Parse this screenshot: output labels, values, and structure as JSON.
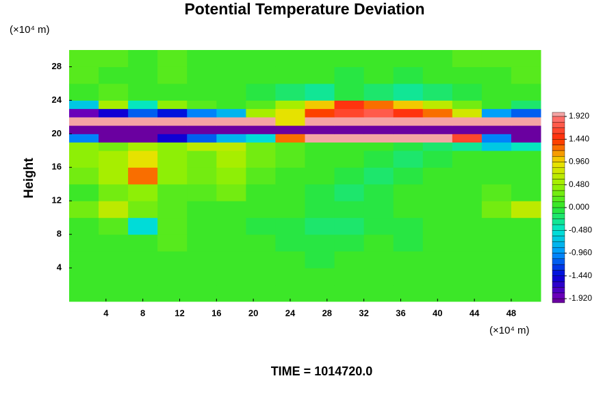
{
  "chart_data": {
    "type": "heatmap",
    "title": "Potential Temperature Deviation",
    "ylabel": "Height",
    "y_unit": "(×10⁴ m)",
    "x_unit": "(×10⁴ m)",
    "footer": "TIME = 1014720.0",
    "xlim": [
      0,
      51.2
    ],
    "ylim": [
      0,
      30
    ],
    "xticks": [
      4,
      8,
      12,
      16,
      20,
      24,
      28,
      32,
      36,
      40,
      44,
      48
    ],
    "yticks": [
      4,
      8,
      12,
      16,
      20,
      24,
      28
    ],
    "x_edges": [
      0,
      3.2,
      6.4,
      9.6,
      12.8,
      16,
      19.2,
      22.4,
      25.6,
      28.8,
      32,
      35.2,
      38.4,
      41.6,
      44.8,
      48,
      51.2
    ],
    "y_edges": [
      0,
      2,
      4,
      6,
      8,
      10,
      12,
      14,
      16,
      18,
      19,
      20,
      21,
      22,
      23,
      24,
      26,
      28,
      30
    ],
    "z": [
      [
        0.1,
        0.1,
        0.05,
        0.1,
        0.1,
        0.05,
        0,
        0.05,
        0,
        0,
        0.05,
        0,
        0.05,
        0.1,
        0.1,
        0.1
      ],
      [
        0.1,
        0.05,
        0.1,
        0.1,
        0.05,
        0.05,
        0,
        0,
        0,
        0.05,
        0,
        0,
        0.05,
        0.1,
        0.1,
        0.1
      ],
      [
        0.1,
        0.1,
        0.1,
        0.05,
        0.1,
        0,
        0,
        0,
        -0.05,
        0,
        0,
        0,
        0.05,
        0.05,
        0.1,
        0.1
      ],
      [
        0.1,
        0.05,
        0.1,
        0.2,
        0.1,
        0,
        0,
        -0.1,
        -0.1,
        -0.1,
        0,
        -0.1,
        0,
        0,
        0.1,
        0.1
      ],
      [
        0.1,
        0.2,
        -0.5,
        0.2,
        0.1,
        0,
        -0.1,
        -0.1,
        -0.2,
        -0.2,
        -0.1,
        -0.1,
        0,
        0,
        0.1,
        0.1
      ],
      [
        0.3,
        0.7,
        0.3,
        0.2,
        0.1,
        0.1,
        0.1,
        0,
        -0.1,
        -0.1,
        -0.1,
        0,
        0,
        0.1,
        0.3,
        0.6
      ],
      [
        0.1,
        0.3,
        0.4,
        0.2,
        0.2,
        0.3,
        0.1,
        0,
        -0.1,
        -0.2,
        -0.1,
        0,
        0,
        0.1,
        0.2,
        0.1
      ],
      [
        0.3,
        0.5,
        1.3,
        0.4,
        0.3,
        0.4,
        0.2,
        0.1,
        0,
        -0.1,
        -0.2,
        -0.1,
        0,
        0,
        0.1,
        0.1
      ],
      [
        0.4,
        0.5,
        0.9,
        0.4,
        0.3,
        0.5,
        0.3,
        0.2,
        0.1,
        0,
        -0.1,
        -0.2,
        -0.1,
        0,
        0.1,
        0.1
      ],
      [
        0.4,
        0.3,
        0.5,
        0.4,
        0.6,
        0.7,
        0.3,
        0.2,
        0.1,
        0,
        0,
        -0.1,
        -0.2,
        -0.3,
        -0.6,
        -0.4
      ],
      [
        -1.0,
        -2.1,
        -2.0,
        -1.5,
        -1.2,
        -0.8,
        -0.5,
        1.3,
        2.1,
        2.2,
        2.2,
        2.1,
        2.0,
        1.6,
        -1.0,
        -2.0
      ],
      [
        -2.1,
        -2.2,
        -2.3,
        -2.2,
        -2.1,
        -2.2,
        -2.3,
        -2.4,
        -2.5,
        -2.6,
        -2.6,
        -2.5,
        -2.4,
        -2.3,
        -2.2,
        -2.1
      ],
      [
        2.1,
        2.3,
        2.2,
        2.1,
        2.0,
        2.1,
        2.2,
        0.9,
        2.1,
        2.2,
        2.3,
        2.2,
        2.2,
        2.1,
        2.0,
        2.1
      ],
      [
        -1.8,
        -1.5,
        -1.2,
        -1.4,
        -1.0,
        -0.8,
        0.5,
        0.9,
        1.4,
        1.6,
        1.7,
        1.5,
        1.2,
        0.8,
        -0.9,
        -1.2
      ],
      [
        -0.6,
        0.5,
        -0.4,
        0.4,
        0.2,
        0.1,
        0.2,
        0.5,
        1.0,
        1.5,
        1.3,
        1.0,
        0.6,
        0.3,
        0.1,
        -0.2
      ],
      [
        0.1,
        0.2,
        0.1,
        0.1,
        0.1,
        0,
        -0.1,
        -0.2,
        -0.3,
        -0.1,
        -0.2,
        -0.3,
        -0.2,
        -0.1,
        0,
        0
      ],
      [
        0.2,
        0.1,
        0.1,
        0.2,
        0.1,
        0,
        0,
        0.1,
        0,
        -0.1,
        0,
        -0.1,
        0,
        0.1,
        0.1,
        0.2
      ],
      [
        0.2,
        0.2,
        0.1,
        0.2,
        0.1,
        0.1,
        0.1,
        0.1,
        0,
        0,
        0.1,
        0,
        0.1,
        0.2,
        0.2,
        0.2
      ]
    ],
    "colorbar": {
      "clim": [
        -1.92,
        1.92
      ],
      "n_levels": 32,
      "colormap": [
        "#7800b4",
        "#0000d8",
        "#0096ff",
        "#00e6d2",
        "#2ee62e",
        "#9cf000",
        "#f0e000",
        "#ff2a00",
        "#ff7878"
      ],
      "under_color": "#6a00a0",
      "over_color": "#f4a4a4",
      "ticks": [
        {
          "value": 1.92,
          "label": "1.920"
        },
        {
          "value": 1.44,
          "label": "1.440"
        },
        {
          "value": 0.96,
          "label": "0.960"
        },
        {
          "value": 0.48,
          "label": "0.480"
        },
        {
          "value": 0,
          "label": "0.000"
        },
        {
          "value": -0.48,
          "label": "-0.480"
        },
        {
          "value": -0.96,
          "label": "-0.960"
        },
        {
          "value": -1.44,
          "label": "-1.440"
        },
        {
          "value": -1.92,
          "label": "-1.920"
        }
      ]
    }
  }
}
